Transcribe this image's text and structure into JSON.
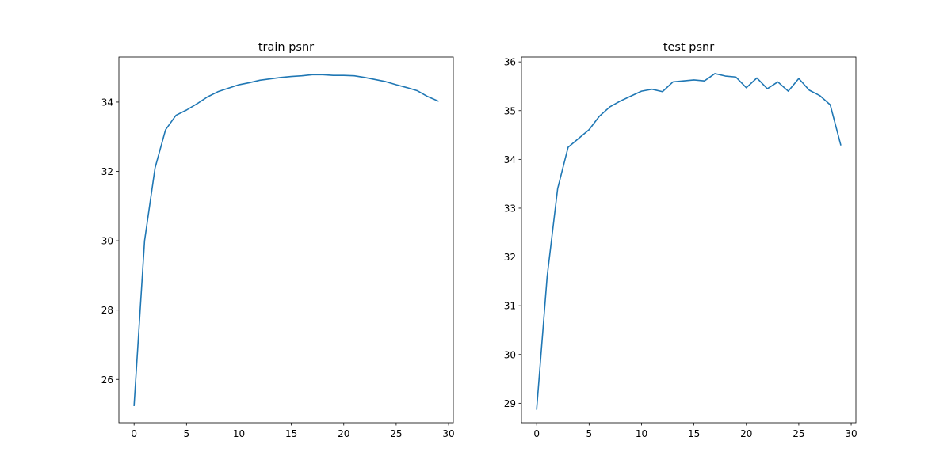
{
  "chart_data": [
    {
      "type": "line",
      "title": "train psnr",
      "xlabel": "",
      "ylabel": "",
      "xlim": [
        -1.45,
        30.45
      ],
      "ylim": [
        24.75,
        35.3
      ],
      "xticks": [
        0,
        5,
        10,
        15,
        20,
        25,
        30
      ],
      "yticks": [
        26,
        28,
        30,
        32,
        34
      ],
      "grid": false,
      "color": "#1f77b4",
      "x": [
        0,
        1,
        2,
        3,
        4,
        5,
        6,
        7,
        8,
        9,
        10,
        11,
        12,
        13,
        14,
        15,
        16,
        17,
        18,
        19,
        20,
        21,
        22,
        23,
        24,
        25,
        26,
        27,
        28,
        29
      ],
      "y": [
        25.25,
        30.0,
        32.1,
        33.2,
        33.62,
        33.77,
        33.95,
        34.15,
        34.3,
        34.4,
        34.5,
        34.56,
        34.63,
        34.67,
        34.71,
        34.74,
        34.76,
        34.79,
        34.79,
        34.77,
        34.77,
        34.76,
        34.71,
        34.65,
        34.59,
        34.5,
        34.42,
        34.33,
        34.16,
        34.03
      ]
    },
    {
      "type": "line",
      "title": "test psnr",
      "xlabel": "",
      "ylabel": "",
      "xlim": [
        -1.45,
        30.45
      ],
      "ylim": [
        28.6,
        36.1
      ],
      "xticks": [
        0,
        5,
        10,
        15,
        20,
        25,
        30
      ],
      "yticks": [
        29,
        30,
        31,
        32,
        33,
        34,
        35,
        36
      ],
      "grid": false,
      "color": "#1f77b4",
      "x": [
        0,
        1,
        2,
        3,
        4,
        5,
        6,
        7,
        8,
        9,
        10,
        11,
        12,
        13,
        14,
        15,
        16,
        17,
        18,
        19,
        20,
        21,
        22,
        23,
        24,
        25,
        26,
        27,
        28,
        29
      ],
      "y": [
        28.88,
        31.6,
        33.4,
        34.25,
        34.43,
        34.61,
        34.89,
        35.08,
        35.2,
        35.3,
        35.4,
        35.44,
        35.39,
        35.59,
        35.61,
        35.63,
        35.61,
        35.76,
        35.71,
        35.69,
        35.47,
        35.67,
        35.45,
        35.59,
        35.4,
        35.66,
        35.42,
        35.31,
        35.12,
        34.3
      ]
    }
  ]
}
